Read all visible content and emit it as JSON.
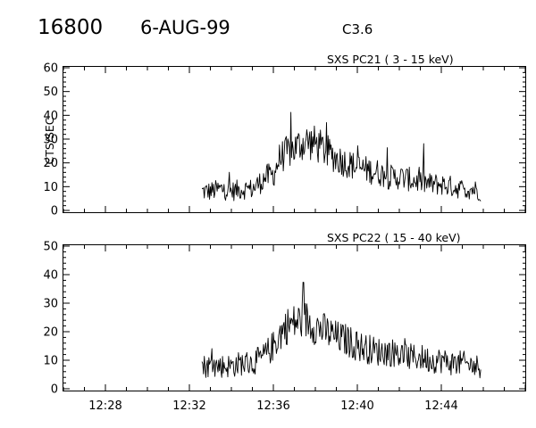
{
  "header": {
    "event_id": "16800",
    "date": "6-AUG-99",
    "flare_class": "C3.6"
  },
  "chart_data": [
    {
      "type": "line",
      "title": "SXS PC21  (  3 - 15 keV)",
      "ylabel": "CTS/SEC",
      "xlabel": "",
      "ylim": [
        0,
        60
      ],
      "yticks": [
        "0",
        "10",
        "20",
        "30",
        "40",
        "50",
        "60"
      ],
      "xlim": [
        "12:26",
        "12:48"
      ],
      "xticks": [
        "12:28",
        "12:32",
        "12:36",
        "12:40",
        "12:44"
      ],
      "series": [
        {
          "time": [
            "12:32.6",
            "12:33",
            "12:33.5",
            "12:34",
            "12:34.5",
            "12:35",
            "12:35.4",
            "12:35.6",
            "12:36",
            "12:36.3",
            "12:36.6",
            "12:37",
            "12:37.3",
            "12:37.6",
            "12:38",
            "12:38.5",
            "12:39",
            "12:39.5",
            "12:40",
            "12:40.5",
            "12:41",
            "12:41.5",
            "12:42",
            "12:42.5",
            "12:43",
            "12:43.5",
            "12:44",
            "12:44.5",
            "12:45",
            "12:45.5",
            "12:45.9"
          ],
          "values": [
            8,
            8,
            9,
            8,
            9,
            9,
            12,
            14,
            15,
            22,
            24,
            26,
            28,
            29,
            28,
            25,
            22,
            20,
            18,
            17,
            16,
            14,
            14,
            13,
            12,
            11,
            11,
            10,
            9,
            9,
            8
          ]
        }
      ]
    },
    {
      "type": "line",
      "title": "SXS PC22  ( 15 - 40 keV)",
      "ylabel": "",
      "xlabel": "",
      "ylim": [
        0,
        50
      ],
      "yticks": [
        "0",
        "10",
        "20",
        "30",
        "40",
        "50"
      ],
      "xlim": [
        "12:26",
        "12:48"
      ],
      "xticks": [
        "12:28",
        "12:32",
        "12:36",
        "12:40",
        "12:44"
      ],
      "series": [
        {
          "time": [
            "12:32.6",
            "12:33",
            "12:33.5",
            "12:34",
            "12:34.5",
            "12:35",
            "12:35.5",
            "12:36",
            "12:36.3",
            "12:36.6",
            "12:37",
            "12:37.3",
            "12:37.6",
            "12:38",
            "12:38.5",
            "12:39",
            "12:39.5",
            "12:40",
            "12:40.5",
            "12:41",
            "12:41.5",
            "12:42",
            "12:42.5",
            "12:43",
            "12:43.5",
            "12:44",
            "12:44.5",
            "12:45",
            "12:45.5",
            "12:45.9"
          ],
          "values": [
            8,
            8,
            8,
            8,
            9,
            9,
            11,
            15,
            19,
            22,
            23,
            24,
            24,
            22,
            20,
            18,
            17,
            15,
            14,
            13,
            13,
            12,
            11,
            11,
            10,
            10,
            9,
            9,
            8,
            8
          ]
        }
      ]
    }
  ]
}
